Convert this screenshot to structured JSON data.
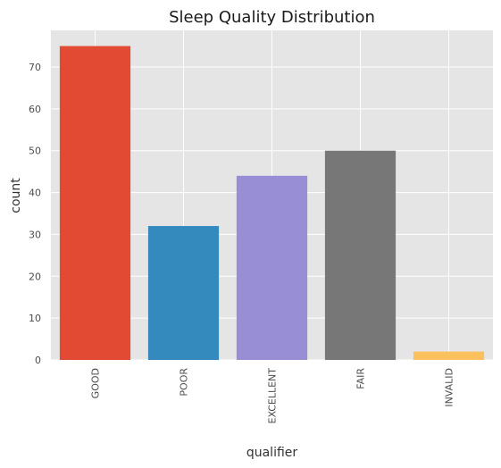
{
  "chart_data": {
    "type": "bar",
    "title": "Sleep Quality Distribution",
    "xlabel": "qualifier",
    "ylabel": "count",
    "categories": [
      "GOOD",
      "POOR",
      "EXCELLENT",
      "FAIR",
      "INVALID"
    ],
    "values": [
      75,
      32,
      44,
      50,
      2
    ],
    "colors": [
      "#E24A33",
      "#348ABD",
      "#988ED5",
      "#777777",
      "#FBC15E"
    ],
    "ylim": [
      0,
      78.75
    ],
    "yticks": [
      0,
      10,
      20,
      30,
      40,
      50,
      60,
      70
    ],
    "grid": true,
    "background": "#E5E5E5",
    "grid_color": "#FFFFFF"
  }
}
